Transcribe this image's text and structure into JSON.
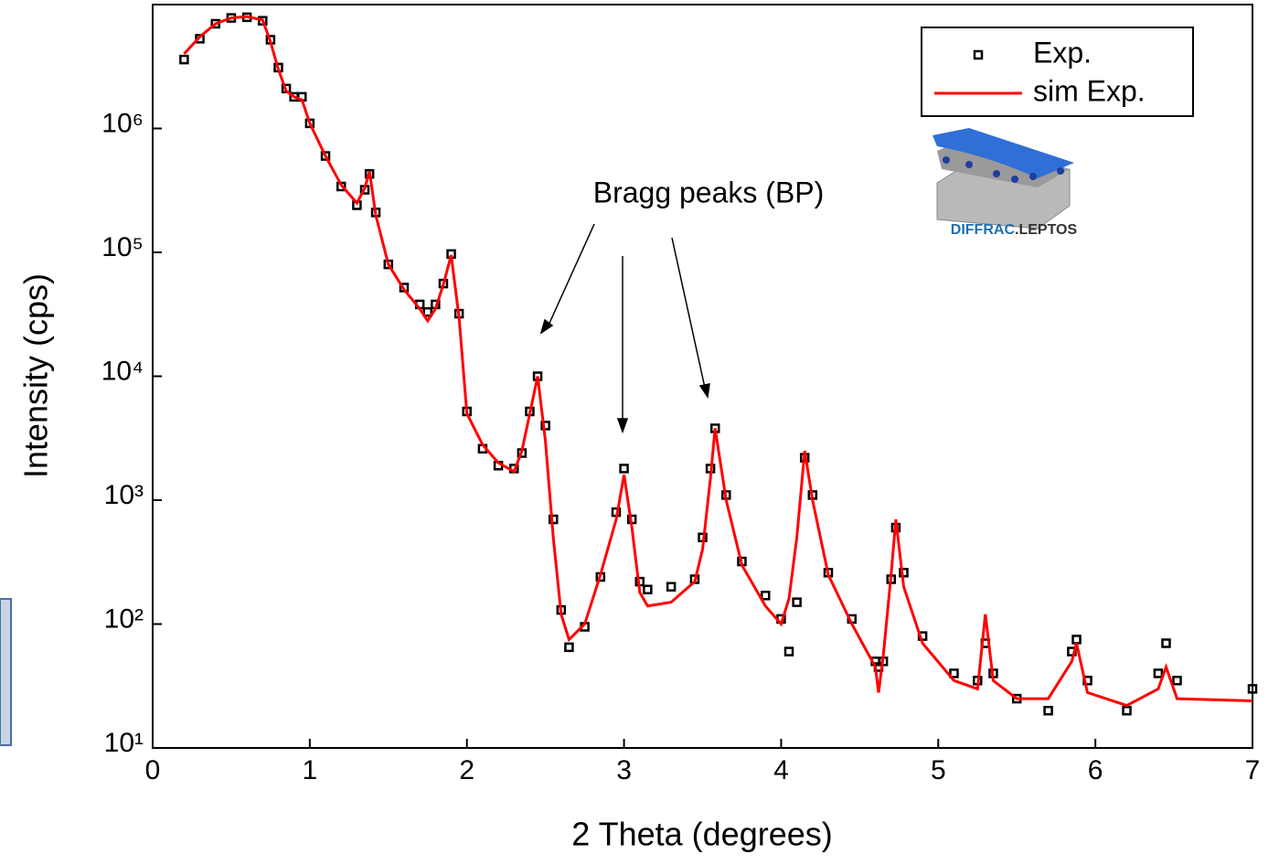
{
  "chart_data": {
    "type": "line",
    "x_label": "2 Theta (degrees)",
    "y_label": "Intensity (cps)",
    "y_log": true,
    "xlim": [
      0,
      7
    ],
    "xticks": [
      0,
      1,
      2,
      3,
      4,
      5,
      6,
      7
    ],
    "ylim": [
      10,
      10000000
    ],
    "yticks": [
      {
        "value": 10,
        "label": "10¹"
      },
      {
        "value": 100,
        "label": "10²"
      },
      {
        "value": 1000,
        "label": "10³"
      },
      {
        "value": 10000,
        "label": "10⁴"
      },
      {
        "value": 100000,
        "label": "10⁵"
      },
      {
        "value": 1000000,
        "label": "10⁶"
      }
    ],
    "annotation": "Bragg peaks (BP)",
    "logo": [
      "DIFFRAC",
      ".LEPTOS"
    ],
    "legend_position": "upper right",
    "x": [
      0.2,
      0.3,
      0.4,
      0.5,
      0.6,
      0.7,
      0.75,
      0.8,
      0.85,
      0.9,
      0.95,
      1.0,
      1.1,
      1.2,
      1.3,
      1.35,
      1.38,
      1.42,
      1.5,
      1.6,
      1.7,
      1.75,
      1.8,
      1.85,
      1.9,
      1.95,
      2.0,
      2.1,
      2.2,
      2.3,
      2.35,
      2.4,
      2.45,
      2.5,
      2.55,
      2.6,
      2.65,
      2.75,
      2.85,
      2.95,
      3.0,
      3.05,
      3.1,
      3.15,
      3.3,
      3.45,
      3.5,
      3.55,
      3.58,
      3.65,
      3.75,
      3.9,
      4.0,
      4.05,
      4.1,
      4.15,
      4.2,
      4.3,
      4.45,
      4.6,
      4.62,
      4.65,
      4.7,
      4.73,
      4.78,
      4.9,
      5.1,
      5.25,
      5.3,
      5.35,
      5.5,
      5.7,
      5.85,
      5.88,
      5.95,
      6.2,
      6.4,
      6.45,
      6.52,
      7.0
    ],
    "series": [
      {
        "name": "Exp.",
        "color": "#000000",
        "marker": "square",
        "values": [
          3600000,
          5300000,
          7000000,
          7800000,
          7900000,
          7400000,
          5200000,
          3100000,
          2100000,
          1800000,
          1800000,
          1100000,
          600000,
          340000,
          240000,
          320000,
          430000,
          210000,
          80000,
          52000,
          38000,
          33000,
          38000,
          56000,
          97000,
          32000,
          5200,
          2600,
          1900,
          1800,
          2400,
          5200,
          10000,
          4000,
          700,
          130,
          65,
          95,
          240,
          800,
          1800,
          700,
          220,
          190,
          200,
          230,
          500,
          1800,
          3800,
          1100,
          320,
          170,
          110,
          60,
          150,
          2200,
          1100,
          260,
          110,
          50,
          45,
          50,
          230,
          600,
          260,
          80,
          40,
          35,
          70,
          40,
          25,
          20,
          60,
          75,
          35,
          20,
          40,
          70,
          35,
          30
        ]
      },
      {
        "name": "sim Exp.",
        "color": "#ff0000",
        "marker": "line",
        "values": [
          4000000,
          5500000,
          7000000,
          7800000,
          8000000,
          7500000,
          5000000,
          3000000,
          2000000,
          1800000,
          1700000,
          1100000,
          600000,
          350000,
          250000,
          330000,
          450000,
          200000,
          80000,
          50000,
          35000,
          28000,
          35000,
          55000,
          95000,
          30000,
          5000,
          2800,
          2000,
          1700,
          2500,
          5000,
          10000,
          3000,
          500,
          120,
          75,
          100,
          250,
          700,
          1600,
          600,
          180,
          140,
          150,
          220,
          400,
          1500,
          3800,
          1000,
          300,
          140,
          100,
          160,
          500,
          2500,
          1000,
          250,
          100,
          45,
          28,
          55,
          250,
          700,
          200,
          70,
          35,
          30,
          120,
          35,
          25,
          25,
          50,
          70,
          28,
          22,
          30,
          45,
          25,
          24
        ]
      }
    ]
  }
}
